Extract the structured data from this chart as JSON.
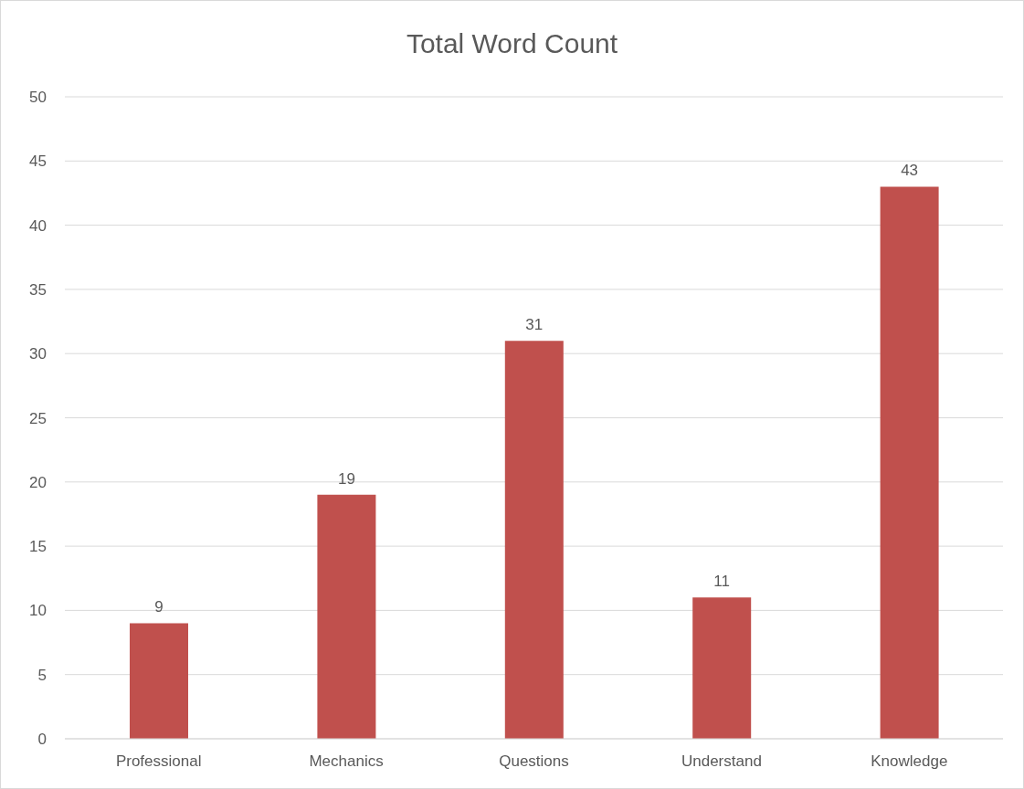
{
  "chart_data": {
    "type": "bar",
    "title": "Total Word Count",
    "categories": [
      "Professional",
      "Mechanics",
      "Questions",
      "Understand",
      "Knowledge"
    ],
    "values": [
      9,
      19,
      31,
      11,
      43
    ],
    "color": "#c0504d",
    "ylim": [
      0,
      50
    ],
    "yticks": [
      0,
      5,
      10,
      15,
      20,
      25,
      30,
      35,
      40,
      45,
      50
    ],
    "grid": "y",
    "data_labels": true
  }
}
